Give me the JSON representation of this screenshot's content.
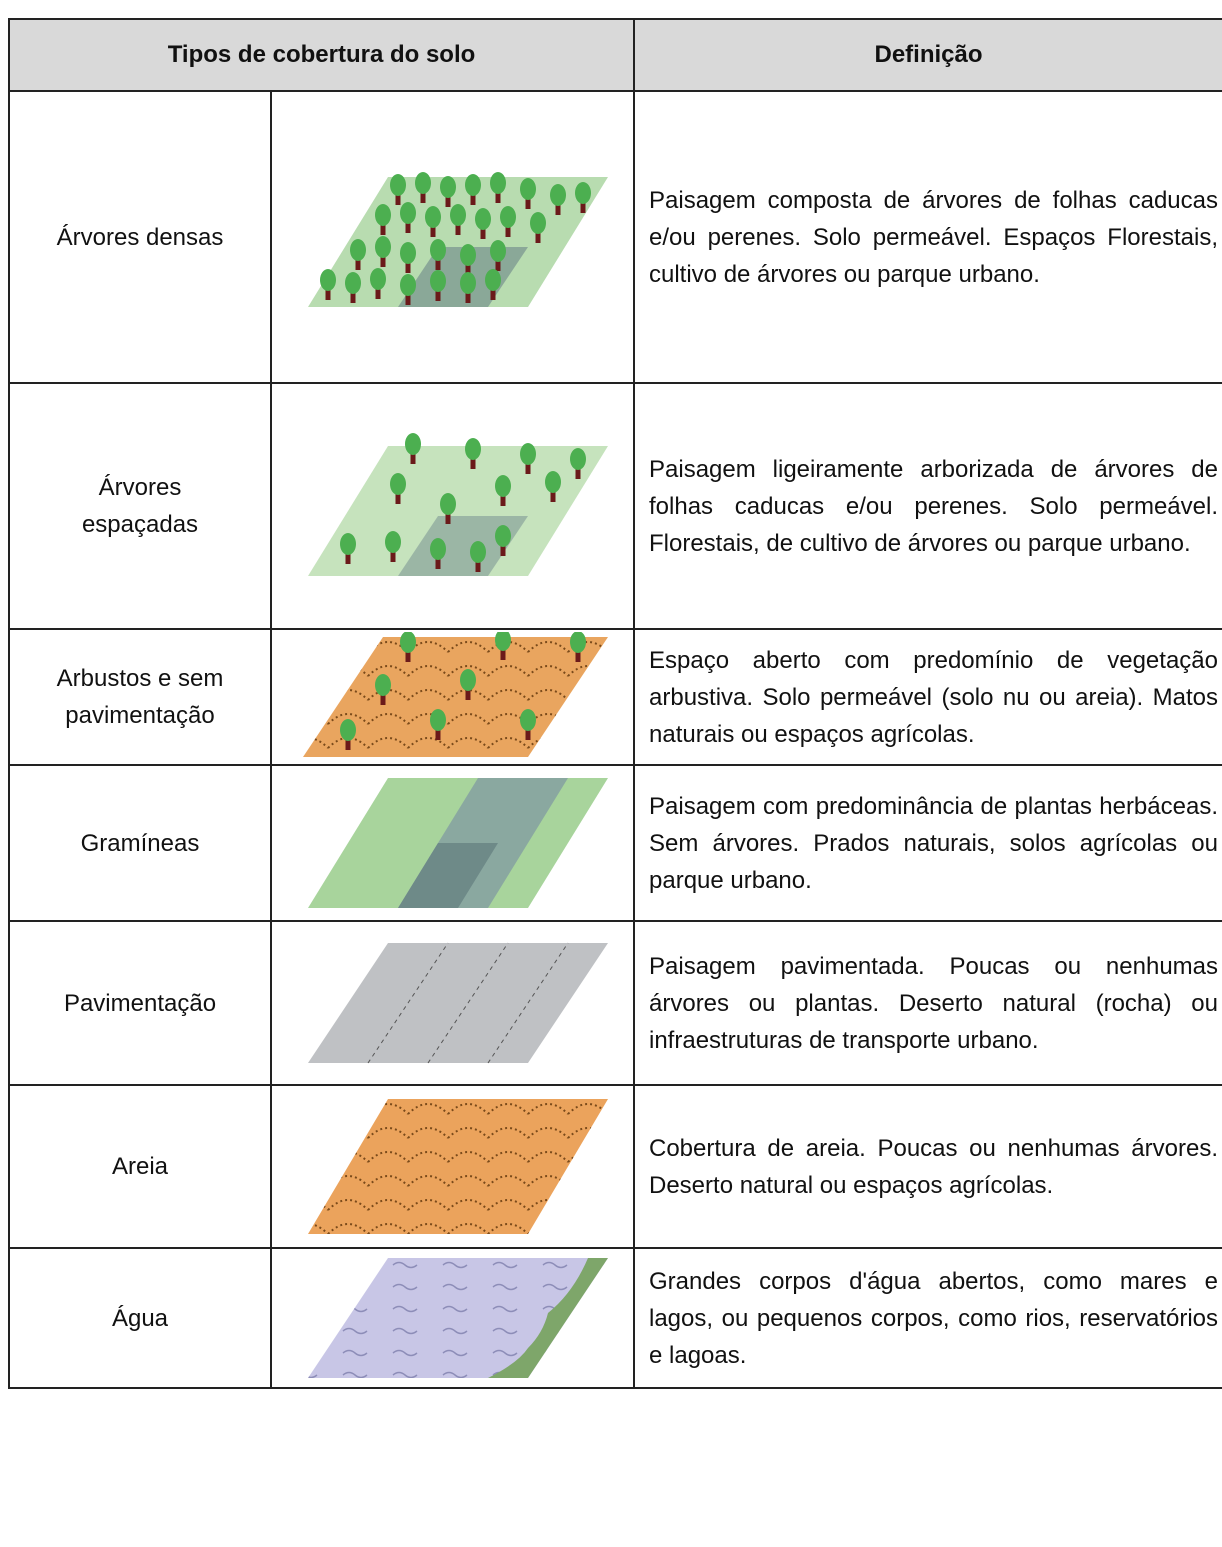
{
  "header": {
    "columns": [
      "Tipos de cobertura do solo",
      "Definição"
    ]
  },
  "table": {
    "rows": [
      {
        "type": "Árvores densas",
        "definition": "Paisagem composta de árvores de folhas caducas e/ou perenes. Solo permeável. Espaços Florestais, cultivo de árvores ou parque urbano."
      },
      {
        "type": "Árvores espaçadas",
        "definition": "Paisagem ligeiramente arborizada de árvores de folhas caducas e/ou perenes. Solo permeável.  Florestais, de cultivo de árvores ou parque urbano."
      },
      {
        "type": "Arbustos e sem pavimentação",
        "definition": "Espaço aberto com predomínio de vegetação arbustiva. Solo permeável (solo nu ou areia). Matos naturais ou espaços agrícolas."
      },
      {
        "type": "Gramíneas",
        "definition": "Paisagem com predominância de plantas herbáceas. Sem árvores. Prados naturais, solos agrícolas ou parque urbano."
      },
      {
        "type": "Pavimentação",
        "definition": "Paisagem pavimentada. Poucas ou nenhumas árvores ou plantas. Deserto natural (rocha) ou infraestruturas de transporte urbano."
      },
      {
        "type": "Areia",
        "definition": "Cobertura de areia. Poucas ou nenhumas árvores. Deserto natural ou espaços agrícolas."
      },
      {
        "type": "Água",
        "definition": "Grandes corpos d'água abertos, como mares e lagos, ou pequenos corpos, como rios, reservatórios e lagoas."
      }
    ]
  }
}
